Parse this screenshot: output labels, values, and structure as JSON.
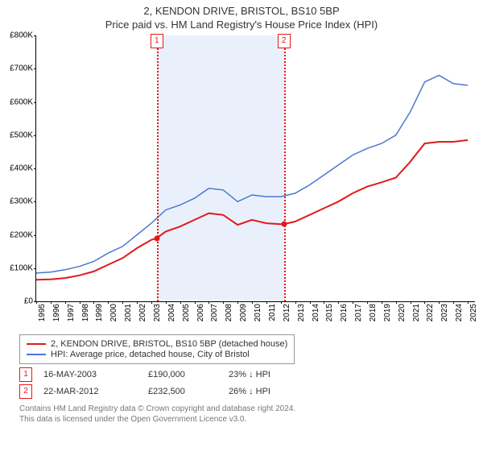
{
  "title": "2, KENDON DRIVE, BRISTOL, BS10 5BP",
  "subtitle": "Price paid vs. HM Land Registry's House Price Index (HPI)",
  "chart": {
    "type": "line",
    "background_color": "#ffffff",
    "x_years": [
      1995,
      1996,
      1997,
      1998,
      1999,
      2000,
      2001,
      2002,
      2003,
      2004,
      2005,
      2006,
      2007,
      2008,
      2009,
      2010,
      2011,
      2012,
      2013,
      2014,
      2015,
      2016,
      2017,
      2018,
      2019,
      2020,
      2021,
      2022,
      2023,
      2024,
      2025
    ],
    "xlim": [
      1995,
      2025.5
    ],
    "ylim": [
      0,
      800000
    ],
    "ytick_step": 100000,
    "ytick_labels": [
      "£0",
      "£100K",
      "£200K",
      "£300K",
      "£400K",
      "£500K",
      "£600K",
      "£700K",
      "£800K"
    ],
    "axis_color": "#000000",
    "label_fontsize": 10,
    "shade": {
      "from_year": 2003.38,
      "to_year": 2012.22,
      "color": "#eaf0fb"
    },
    "series": [
      {
        "name": "price_paid",
        "color": "#e21a1a",
        "line_width": 2,
        "points": [
          [
            1995,
            65000
          ],
          [
            1996,
            66000
          ],
          [
            1997,
            70000
          ],
          [
            1998,
            78000
          ],
          [
            1999,
            90000
          ],
          [
            2000,
            110000
          ],
          [
            2001,
            130000
          ],
          [
            2002,
            160000
          ],
          [
            2003,
            185000
          ],
          [
            2003.38,
            190000
          ],
          [
            2004,
            210000
          ],
          [
            2005,
            225000
          ],
          [
            2006,
            245000
          ],
          [
            2007,
            265000
          ],
          [
            2008,
            260000
          ],
          [
            2009,
            230000
          ],
          [
            2010,
            245000
          ],
          [
            2011,
            235000
          ],
          [
            2012,
            232000
          ],
          [
            2012.22,
            232500
          ],
          [
            2013,
            240000
          ],
          [
            2014,
            260000
          ],
          [
            2015,
            280000
          ],
          [
            2016,
            300000
          ],
          [
            2017,
            325000
          ],
          [
            2018,
            345000
          ],
          [
            2019,
            358000
          ],
          [
            2020,
            372000
          ],
          [
            2021,
            420000
          ],
          [
            2022,
            475000
          ],
          [
            2023,
            480000
          ],
          [
            2024,
            480000
          ],
          [
            2025,
            485000
          ]
        ]
      },
      {
        "name": "hpi",
        "color": "#4a77d4",
        "line_width": 1.5,
        "points": [
          [
            1995,
            85000
          ],
          [
            1996,
            88000
          ],
          [
            1997,
            95000
          ],
          [
            1998,
            105000
          ],
          [
            1999,
            120000
          ],
          [
            2000,
            145000
          ],
          [
            2001,
            165000
          ],
          [
            2002,
            200000
          ],
          [
            2003,
            235000
          ],
          [
            2004,
            275000
          ],
          [
            2005,
            290000
          ],
          [
            2006,
            310000
          ],
          [
            2007,
            340000
          ],
          [
            2008,
            335000
          ],
          [
            2009,
            300000
          ],
          [
            2010,
            320000
          ],
          [
            2011,
            315000
          ],
          [
            2012,
            315000
          ],
          [
            2013,
            325000
          ],
          [
            2014,
            350000
          ],
          [
            2015,
            380000
          ],
          [
            2016,
            410000
          ],
          [
            2017,
            440000
          ],
          [
            2018,
            460000
          ],
          [
            2019,
            475000
          ],
          [
            2020,
            500000
          ],
          [
            2021,
            570000
          ],
          [
            2022,
            660000
          ],
          [
            2023,
            680000
          ],
          [
            2024,
            655000
          ],
          [
            2025,
            650000
          ]
        ]
      }
    ],
    "events": [
      {
        "n": "1",
        "year": 2003.38,
        "price_y": 190000,
        "color": "#e21a1a"
      },
      {
        "n": "2",
        "year": 2012.22,
        "price_y": 232500,
        "color": "#e21a1a"
      }
    ]
  },
  "legend": {
    "items": [
      {
        "color": "#e21a1a",
        "label": "2, KENDON DRIVE, BRISTOL, BS10 5BP (detached house)"
      },
      {
        "color": "#4a77d4",
        "label": "HPI: Average price, detached house, City of Bristol"
      }
    ]
  },
  "event_table": [
    {
      "n": "1",
      "color": "#e21a1a",
      "date": "16-MAY-2003",
      "price": "£190,000",
      "delta": "23% ↓ HPI"
    },
    {
      "n": "2",
      "color": "#e21a1a",
      "date": "22-MAR-2012",
      "price": "£232,500",
      "delta": "26% ↓ HPI"
    }
  ],
  "footnote_line1": "Contains HM Land Registry data © Crown copyright and database right 2024.",
  "footnote_line2": "This data is licensed under the Open Government Licence v3.0."
}
